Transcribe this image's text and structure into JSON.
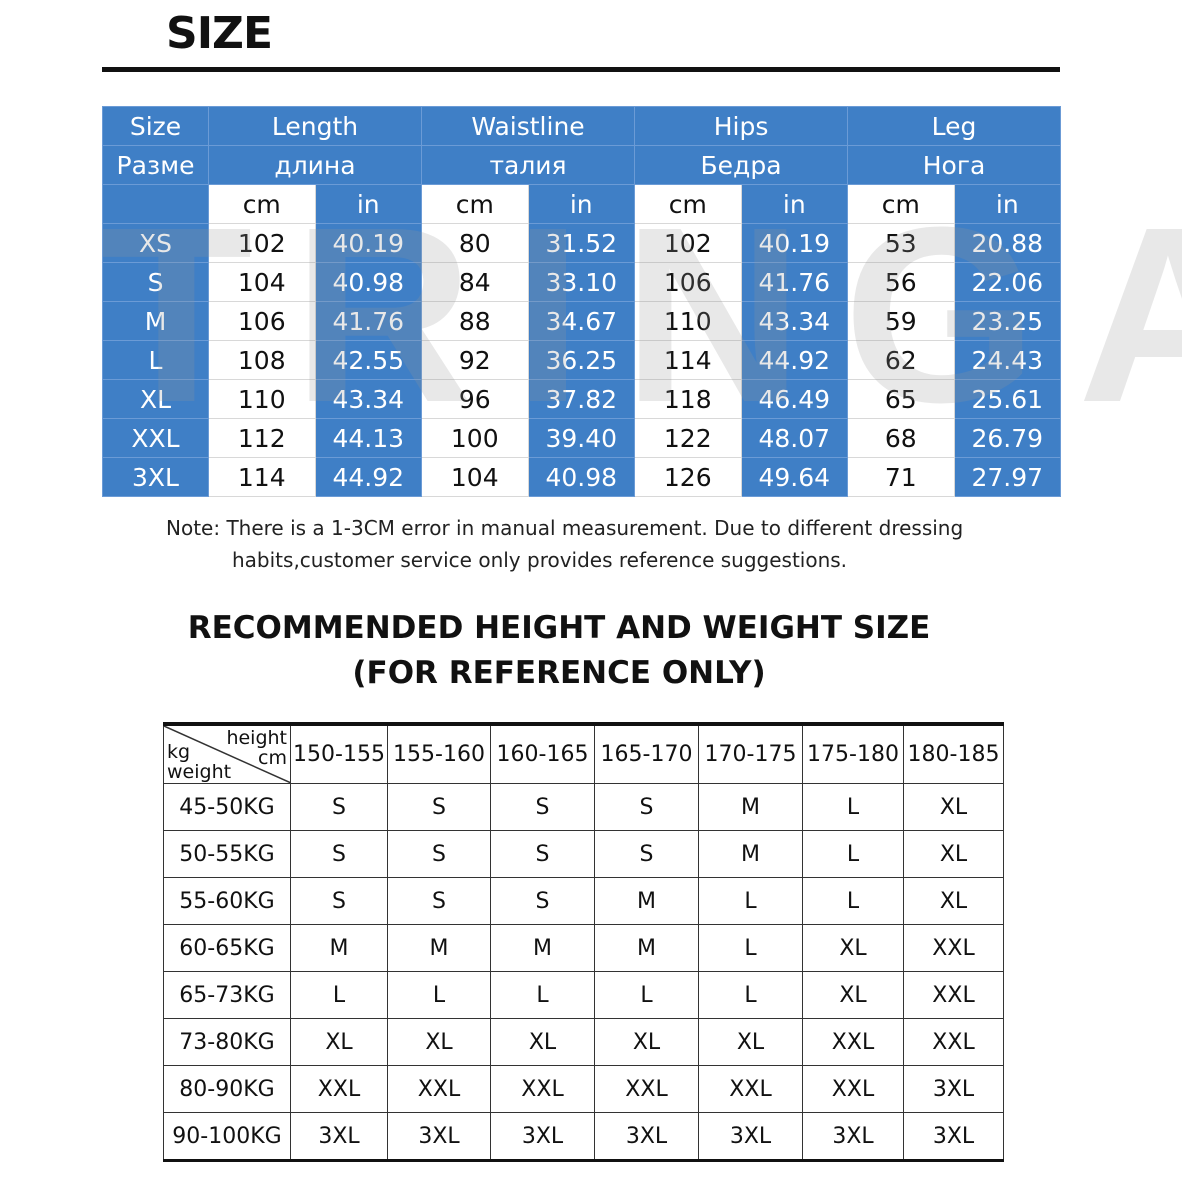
{
  "title": "SIZE",
  "watermark": "TRINGA",
  "size_table": {
    "header_en": [
      "Size",
      "Length",
      "Waistline",
      "Hips",
      "Leg"
    ],
    "header_ru": [
      "Разме",
      "длина",
      "талия",
      "Бедра",
      "Нога"
    ],
    "units": [
      "cm",
      "in"
    ],
    "rows": [
      [
        "XS",
        "102",
        "40.19",
        "80",
        "31.52",
        "102",
        "40.19",
        "53",
        "20.88"
      ],
      [
        "S",
        "104",
        "40.98",
        "84",
        "33.10",
        "106",
        "41.76",
        "56",
        "22.06"
      ],
      [
        "M",
        "106",
        "41.76",
        "88",
        "34.67",
        "110",
        "43.34",
        "59",
        "23.25"
      ],
      [
        "L",
        "108",
        "42.55",
        "92",
        "36.25",
        "114",
        "44.92",
        "62",
        "24.43"
      ],
      [
        "XL",
        "110",
        "43.34",
        "96",
        "37.82",
        "118",
        "46.49",
        "65",
        "25.61"
      ],
      [
        "XXL",
        "112",
        "44.13",
        "100",
        "39.40",
        "122",
        "48.07",
        "68",
        "26.79"
      ],
      [
        "3XL",
        "114",
        "44.92",
        "104",
        "40.98",
        "126",
        "49.64",
        "71",
        "27.97"
      ]
    ],
    "colors": {
      "blue": "#3f7fc6",
      "white": "#ffffff"
    }
  },
  "note": {
    "line1": "Note: There is a 1-3CM error in manual measurement. Due to different dressing",
    "line2": "habits,customer service only provides reference suggestions."
  },
  "recommend": {
    "title1": "RECOMMENDED HEIGHT AND WEIGHT SIZE",
    "title2": "(FOR REFERENCE ONLY)",
    "corner_top": "height",
    "corner_top2": "cm",
    "corner_bottom1": "kg",
    "corner_bottom2": "weight",
    "heights": [
      "150-155",
      "155-160",
      "160-165",
      "165-170",
      "170-175",
      "175-180",
      "180-185"
    ],
    "rows": [
      {
        "weight": "45-50KG",
        "sizes": [
          "S",
          "S",
          "S",
          "S",
          "M",
          "L",
          "XL"
        ]
      },
      {
        "weight": "50-55KG",
        "sizes": [
          "S",
          "S",
          "S",
          "S",
          "M",
          "L",
          "XL"
        ]
      },
      {
        "weight": "55-60KG",
        "sizes": [
          "S",
          "S",
          "S",
          "M",
          "L",
          "L",
          "XL"
        ]
      },
      {
        "weight": "60-65KG",
        "sizes": [
          "M",
          "M",
          "M",
          "M",
          "L",
          "XL",
          "XXL"
        ]
      },
      {
        "weight": "65-73KG",
        "sizes": [
          "L",
          "L",
          "L",
          "L",
          "L",
          "XL",
          "XXL"
        ]
      },
      {
        "weight": "73-80KG",
        "sizes": [
          "XL",
          "XL",
          "XL",
          "XL",
          "XL",
          "XXL",
          "XXL"
        ]
      },
      {
        "weight": "80-90KG",
        "sizes": [
          "XXL",
          "XXL",
          "XXL",
          "XXL",
          "XXL",
          "XXL",
          "3XL"
        ]
      },
      {
        "weight": "90-100KG",
        "sizes": [
          "3XL",
          "3XL",
          "3XL",
          "3XL",
          "3XL",
          "3XL",
          "3XL"
        ]
      }
    ]
  }
}
